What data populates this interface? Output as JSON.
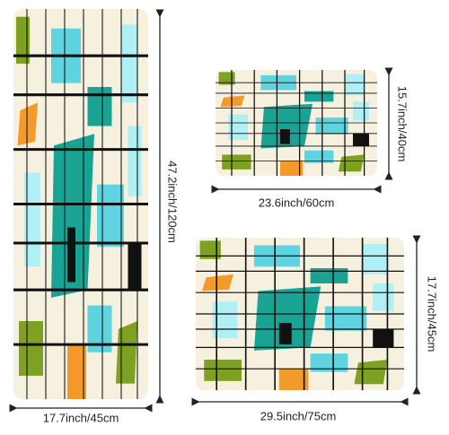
{
  "mats": [
    {
      "height_label": "47.2inch/120cm",
      "width_label": "17.7inch/45cm"
    },
    {
      "height_label": "15.7inch/40cm",
      "width_label": "23.6inch/60cm"
    },
    {
      "height_label": "17.7inch/45cm",
      "width_label": "29.5inch/75cm"
    }
  ]
}
